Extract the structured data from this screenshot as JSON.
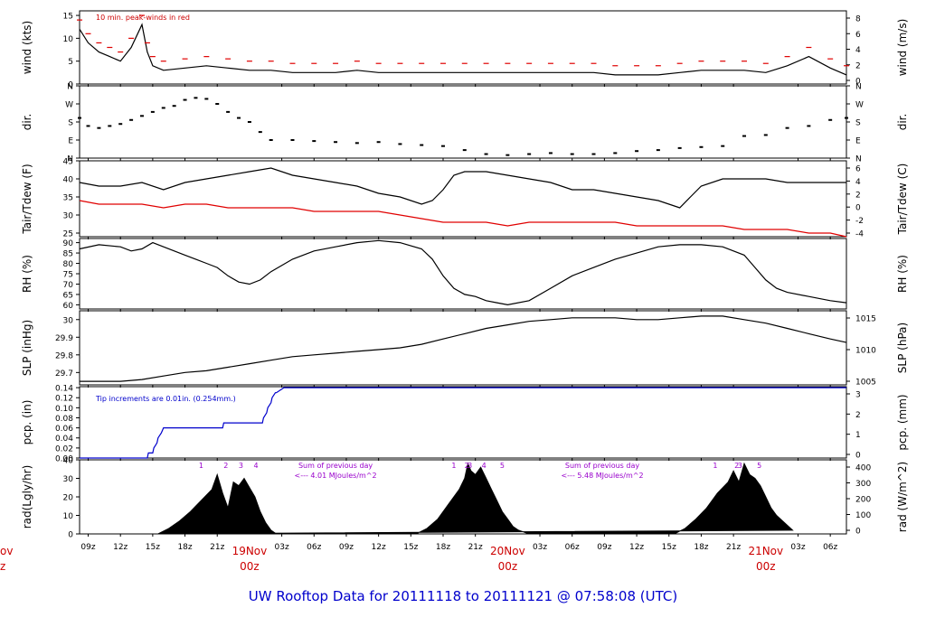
{
  "footer_title": "UW Rooftop Data for 20111118  to  20111121 @ 07:58:08  (UTC)",
  "colors": {
    "ink": "#000000",
    "dewpoint": "#e00000",
    "peak": "#e00000",
    "precip": "#0000cc",
    "annotation_red": "#cc0000",
    "annotation_purple": "#9900cc",
    "date_red": "#cc0000"
  },
  "x_axis": {
    "tick_labels": [
      "09z",
      "12z",
      "15z",
      "18z",
      "21z",
      "03z",
      "06z",
      "09z",
      "12z",
      "15z",
      "18z",
      "21z",
      "03z",
      "06z",
      "09z",
      "12z",
      "15z",
      "18z",
      "21z",
      "03z",
      "06z"
    ],
    "tick_hours": [
      9,
      12,
      15,
      18,
      21,
      27,
      30,
      33,
      36,
      39,
      42,
      45,
      51,
      54,
      57,
      60,
      63,
      66,
      69,
      75,
      78
    ],
    "date_labels": [
      {
        "hour": 24,
        "day": "19Nov",
        "time": "00z"
      },
      {
        "hour": 48,
        "day": "20Nov",
        "time": "00z"
      },
      {
        "hour": 72,
        "day": "21Nov",
        "time": "00z"
      }
    ],
    "cut_day": "ov",
    "cut_time": "z"
  },
  "chart_data": [
    {
      "id": "wind",
      "type": "line",
      "ylabel": "wind (kts)",
      "ylabel_right": "wind (m/s)",
      "y_ticks": [
        0,
        5,
        10,
        15
      ],
      "y_ticks_right": [
        0,
        2,
        4,
        6,
        8
      ],
      "ylim": [
        0,
        16
      ],
      "annotation": "10 min. peak-winds in red",
      "series": [
        {
          "values_x": [
            8.2,
            9,
            10,
            11,
            12,
            13,
            14,
            14.5,
            15,
            16,
            18,
            20,
            22,
            24,
            26,
            28,
            30,
            32,
            34,
            36,
            38,
            40,
            42,
            44,
            46,
            48,
            50,
            52,
            54,
            56,
            58,
            60,
            62,
            64,
            66,
            68,
            70,
            72,
            74,
            76,
            78,
            79.5
          ],
          "values_y": [
            12,
            9,
            7,
            6,
            5,
            8,
            13,
            7,
            4,
            3,
            3.5,
            4,
            3.5,
            3,
            3,
            2.5,
            2.5,
            2.5,
            3,
            2.5,
            2.5,
            2.5,
            2.5,
            2.5,
            2.5,
            2.5,
            2.5,
            2.5,
            2.5,
            2.5,
            2,
            2,
            2,
            2.5,
            3,
            3,
            3,
            2.5,
            4,
            6,
            3.5,
            2
          ]
        }
      ]
    },
    {
      "id": "direction",
      "type": "scatter",
      "ylabel": "dir.",
      "ylabel_right": "dir.",
      "y_ticks": [
        "N",
        "E",
        "S",
        "W",
        "N"
      ],
      "ylim": [
        0,
        360
      ],
      "series": [
        {
          "values_x": [
            8.2,
            9,
            10,
            11,
            12,
            13,
            14,
            15,
            16,
            17,
            18,
            19,
            20,
            21,
            22,
            23,
            24,
            25,
            26,
            28,
            30,
            32,
            34,
            36,
            38,
            40,
            42,
            44,
            46,
            48,
            50,
            52,
            54,
            56,
            58,
            60,
            62,
            64,
            66,
            68,
            70,
            72,
            74,
            76,
            78,
            79.5
          ],
          "values_y": [
            200,
            160,
            150,
            160,
            170,
            190,
            210,
            230,
            250,
            260,
            290,
            300,
            295,
            270,
            230,
            200,
            180,
            130,
            90,
            90,
            85,
            80,
            75,
            80,
            70,
            65,
            60,
            40,
            20,
            15,
            20,
            25,
            20,
            20,
            25,
            35,
            40,
            50,
            55,
            60,
            110,
            115,
            150,
            160,
            190,
            200
          ]
        }
      ]
    },
    {
      "id": "temperature",
      "type": "line",
      "ylabel": "Tair/Tdew (F)",
      "ylabel_right": "Tair/Tdew (C)",
      "y_ticks": [
        25,
        30,
        35,
        40,
        45
      ],
      "y_ticks_right": [
        -4,
        -2,
        0,
        2,
        4,
        6
      ],
      "ylim": [
        24,
        45
      ],
      "series": [
        {
          "name": "Tair",
          "values_x": [
            8.2,
            10,
            12,
            14,
            16,
            18,
            20,
            22,
            24,
            26,
            28,
            30,
            32,
            34,
            36,
            38,
            40,
            41,
            42,
            43,
            44,
            46,
            48,
            50,
            52,
            54,
            56,
            58,
            60,
            62,
            63,
            64,
            65,
            66,
            68,
            70,
            72,
            74,
            76,
            78,
            79.5
          ],
          "values_y": [
            39,
            38,
            38,
            39,
            37,
            39,
            40,
            41,
            42,
            43,
            41,
            40,
            39,
            38,
            36,
            35,
            33,
            34,
            37,
            41,
            42,
            42,
            41,
            40,
            39,
            37,
            37,
            36,
            35,
            34,
            33,
            32,
            35,
            38,
            40,
            40,
            40,
            39,
            39,
            39,
            39
          ]
        },
        {
          "name": "Tdew",
          "values_x": [
            8.2,
            10,
            12,
            14,
            16,
            18,
            20,
            22,
            24,
            26,
            28,
            30,
            32,
            34,
            36,
            38,
            40,
            42,
            44,
            46,
            48,
            50,
            52,
            54,
            56,
            58,
            60,
            62,
            64,
            66,
            68,
            70,
            72,
            74,
            76,
            78,
            79.5
          ],
          "values_y": [
            34,
            33,
            33,
            33,
            32,
            33,
            33,
            32,
            32,
            32,
            32,
            31,
            31,
            31,
            31,
            30,
            29,
            28,
            28,
            28,
            27,
            28,
            28,
            28,
            28,
            28,
            27,
            27,
            27,
            27,
            27,
            26,
            26,
            26,
            25,
            25,
            24
          ]
        }
      ]
    },
    {
      "id": "rh",
      "type": "line",
      "ylabel": "RH (%)",
      "ylabel_right": "RH (%)",
      "y_ticks": [
        60,
        65,
        70,
        75,
        80,
        85,
        90
      ],
      "ylim": [
        58,
        92
      ],
      "series": [
        {
          "values_x": [
            8.2,
            10,
            12,
            13,
            14,
            15,
            16,
            17,
            18,
            19,
            20,
            21,
            22,
            23,
            24,
            25,
            26,
            28,
            30,
            32,
            34,
            36,
            38,
            40,
            41,
            42,
            43,
            44,
            45,
            46,
            47,
            48,
            50,
            52,
            54,
            56,
            58,
            60,
            62,
            64,
            66,
            68,
            70,
            71,
            72,
            73,
            74,
            76,
            78,
            79.5
          ],
          "values_y": [
            87,
            89,
            88,
            86,
            87,
            90,
            88,
            86,
            84,
            82,
            80,
            78,
            74,
            71,
            70,
            72,
            76,
            82,
            86,
            88,
            90,
            91,
            90,
            87,
            82,
            74,
            68,
            65,
            64,
            62,
            61,
            60,
            62,
            68,
            74,
            78,
            82,
            85,
            88,
            89,
            89,
            88,
            84,
            78,
            72,
            68,
            66,
            64,
            62,
            61
          ]
        }
      ]
    },
    {
      "id": "slp",
      "type": "line",
      "ylabel": "SLP (inHg)",
      "ylabel_right": "SLP (hPa)",
      "y_ticks": [
        29.7,
        29.8,
        29.9,
        30.0
      ],
      "y_ticks_right": [
        1005,
        1010,
        1015
      ],
      "ylim": [
        29.63,
        30.05
      ],
      "series": [
        {
          "values_x": [
            8.2,
            10,
            12,
            14,
            16,
            18,
            20,
            22,
            24,
            26,
            28,
            30,
            32,
            34,
            36,
            38,
            40,
            42,
            44,
            46,
            48,
            50,
            52,
            54,
            56,
            58,
            60,
            62,
            64,
            66,
            68,
            70,
            72,
            74,
            76,
            78,
            79.5
          ],
          "values_y": [
            29.65,
            29.65,
            29.65,
            29.66,
            29.68,
            29.7,
            29.71,
            29.73,
            29.75,
            29.77,
            29.79,
            29.8,
            29.81,
            29.82,
            29.83,
            29.84,
            29.86,
            29.89,
            29.92,
            29.95,
            29.97,
            29.99,
            30.0,
            30.01,
            30.01,
            30.01,
            30.0,
            30.0,
            30.01,
            30.02,
            30.02,
            30.0,
            29.98,
            29.95,
            29.92,
            29.89,
            29.87
          ]
        }
      ]
    },
    {
      "id": "precip",
      "type": "line",
      "ylabel": "pcp. (in)",
      "ylabel_right": "pcp. (mm)",
      "y_ticks": [
        0.0,
        0.02,
        0.04,
        0.06,
        0.08,
        0.1,
        0.12,
        0.14
      ],
      "y_tick_labels": [
        "0.00",
        "0.02",
        "0.04",
        "0.06",
        "0.08",
        "0.10",
        "0.12",
        "0.14"
      ],
      "y_ticks_right": [
        0,
        1,
        2,
        3
      ],
      "ylim": [
        0,
        0.142
      ],
      "annotation": "Tip increments are 0.01in. (0.254mm.)",
      "series": [
        {
          "values_x": [
            8.2,
            14.5,
            14.6,
            15.0,
            15.1,
            15.4,
            15.5,
            15.8,
            16,
            21.5,
            21.6,
            25.2,
            25.3,
            25.6,
            25.7,
            26,
            26.1,
            26.4,
            26.5,
            27.2,
            27.3,
            79.5
          ],
          "values_y": [
            0,
            0,
            0.01,
            0.01,
            0.02,
            0.03,
            0.04,
            0.05,
            0.06,
            0.06,
            0.07,
            0.07,
            0.08,
            0.09,
            0.1,
            0.11,
            0.12,
            0.13,
            0.13,
            0.14,
            0.14,
            0.14
          ]
        }
      ]
    },
    {
      "id": "radiation",
      "type": "area",
      "ylabel": "rad(Lgly/hr)",
      "ylabel_right": "rad (W/m^2)",
      "y_ticks": [
        0,
        10,
        20,
        30,
        40
      ],
      "y_ticks_right": [
        0,
        100,
        200,
        300,
        400
      ],
      "ylim": [
        0,
        40
      ],
      "markers": [
        {
          "hour": 19.5,
          "label": "1"
        },
        {
          "hour": 21.8,
          "label": "2"
        },
        {
          "hour": 23.2,
          "label": "3"
        },
        {
          "hour": 24.6,
          "label": "4"
        },
        {
          "hour": 43.0,
          "label": "1"
        },
        {
          "hour": 44.2,
          "label": "2"
        },
        {
          "hour": 44.5,
          "label": "3"
        },
        {
          "hour": 45.8,
          "label": "4"
        },
        {
          "hour": 47.5,
          "label": "5"
        },
        {
          "hour": 67.3,
          "label": "1"
        },
        {
          "hour": 69.3,
          "label": "2"
        },
        {
          "hour": 69.6,
          "label": "3"
        },
        {
          "hour": 71.4,
          "label": "5"
        }
      ],
      "notes": [
        {
          "hour": 32,
          "line1": "Sum of previous day",
          "line2": "<--- 4.01 MJoules/m^2"
        },
        {
          "hour": 56.8,
          "line1": "Sum of previous day",
          "line2": "<--- 5.48 MJoules/m^2"
        }
      ],
      "series": [
        {
          "values_x": [
            15.5,
            16.5,
            17.5,
            18.5,
            19.5,
            20.5,
            21,
            21.5,
            22,
            22.5,
            23,
            23.5,
            24,
            24.5,
            25,
            25.5,
            26,
            26.5,
            39.5,
            40.5,
            41.5,
            42.5,
            43.5,
            44.0,
            44.3,
            44.6,
            45,
            45.5,
            46,
            46.5,
            47,
            47.5,
            48,
            48.5,
            49,
            50.0,
            63.5,
            64.5,
            65.5,
            66.5,
            67.5,
            68.5,
            69.0,
            69.5,
            70.0,
            70.5,
            71.0,
            71.5,
            72.0,
            72.5,
            73,
            74.5
          ],
          "values_y": [
            0,
            3,
            7,
            12,
            18,
            24,
            32,
            22,
            14,
            28,
            26,
            30,
            25,
            20,
            12,
            6,
            2,
            0,
            0,
            3,
            8,
            16,
            24,
            30,
            38,
            34,
            32,
            36,
            30,
            24,
            18,
            12,
            8,
            4,
            2,
            0,
            0,
            3,
            8,
            14,
            22,
            28,
            34,
            28,
            38,
            32,
            30,
            26,
            20,
            14,
            10,
            2
          ]
        }
      ]
    }
  ]
}
